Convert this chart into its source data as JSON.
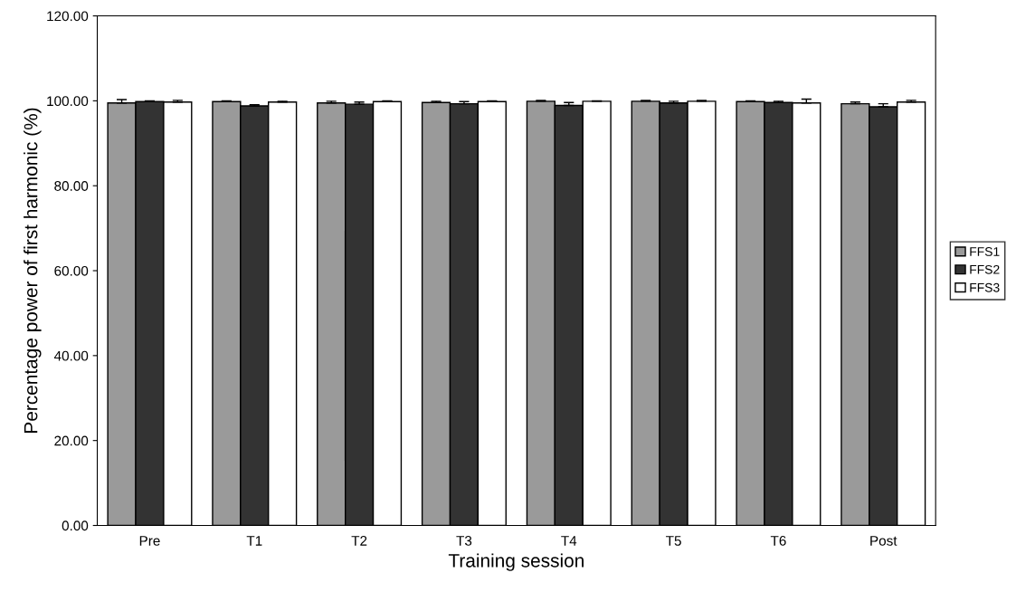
{
  "chart_data": {
    "type": "bar",
    "xlabel": "Training session",
    "ylabel": "Percentage power of first harmonic (%)",
    "categories": [
      "Pre",
      "T1",
      "T2",
      "T3",
      "T4",
      "T5",
      "T6",
      "Post"
    ],
    "series": [
      {
        "name": "FFS1",
        "color": "#9a9a9a",
        "values": [
          99.5,
          99.8,
          99.5,
          99.6,
          99.9,
          99.9,
          99.8,
          99.3
        ],
        "errors": [
          [
            99.5,
            100.3
          ],
          [
            99.8,
            100.0
          ],
          [
            99.5,
            99.9
          ],
          [
            99.6,
            99.9
          ],
          [
            99.9,
            100.1
          ],
          [
            99.9,
            100.1
          ],
          [
            99.8,
            100.0
          ],
          [
            99.3,
            99.7
          ]
        ]
      },
      {
        "name": "FFS2",
        "color": "#333333",
        "values": [
          99.8,
          98.8,
          99.2,
          99.3,
          98.9,
          99.5,
          99.6,
          98.6
        ],
        "errors": [
          [
            99.8,
            100.0
          ],
          [
            98.8,
            99.1
          ],
          [
            99.2,
            99.7
          ],
          [
            99.3,
            99.8
          ],
          [
            98.9,
            99.6
          ],
          [
            99.5,
            99.9
          ],
          [
            99.6,
            99.9
          ],
          [
            98.6,
            99.3
          ]
        ]
      },
      {
        "name": "FFS3",
        "color": "#ffffff",
        "values": [
          99.7,
          99.7,
          99.8,
          99.8,
          99.9,
          99.9,
          99.5,
          99.7
        ],
        "errors": [
          [
            99.7,
            100.1
          ],
          [
            99.7,
            99.9
          ],
          [
            99.8,
            100.0
          ],
          [
            99.8,
            100.0
          ],
          [
            99.9,
            100.0
          ],
          [
            99.9,
            100.1
          ],
          [
            99.5,
            100.4
          ],
          [
            99.7,
            100.1
          ]
        ]
      }
    ],
    "ylim": [
      0,
      120
    ],
    "yticks": [
      {
        "value": 0,
        "label": "0.00"
      },
      {
        "value": 20,
        "label": "20.00"
      },
      {
        "value": 40,
        "label": "40.00"
      },
      {
        "value": 60,
        "label": "60.00"
      },
      {
        "value": 80,
        "label": "80.00"
      },
      {
        "value": 100,
        "label": "100.00"
      },
      {
        "value": 120,
        "label": "120.00"
      }
    ],
    "grid": false,
    "legend": "right"
  }
}
